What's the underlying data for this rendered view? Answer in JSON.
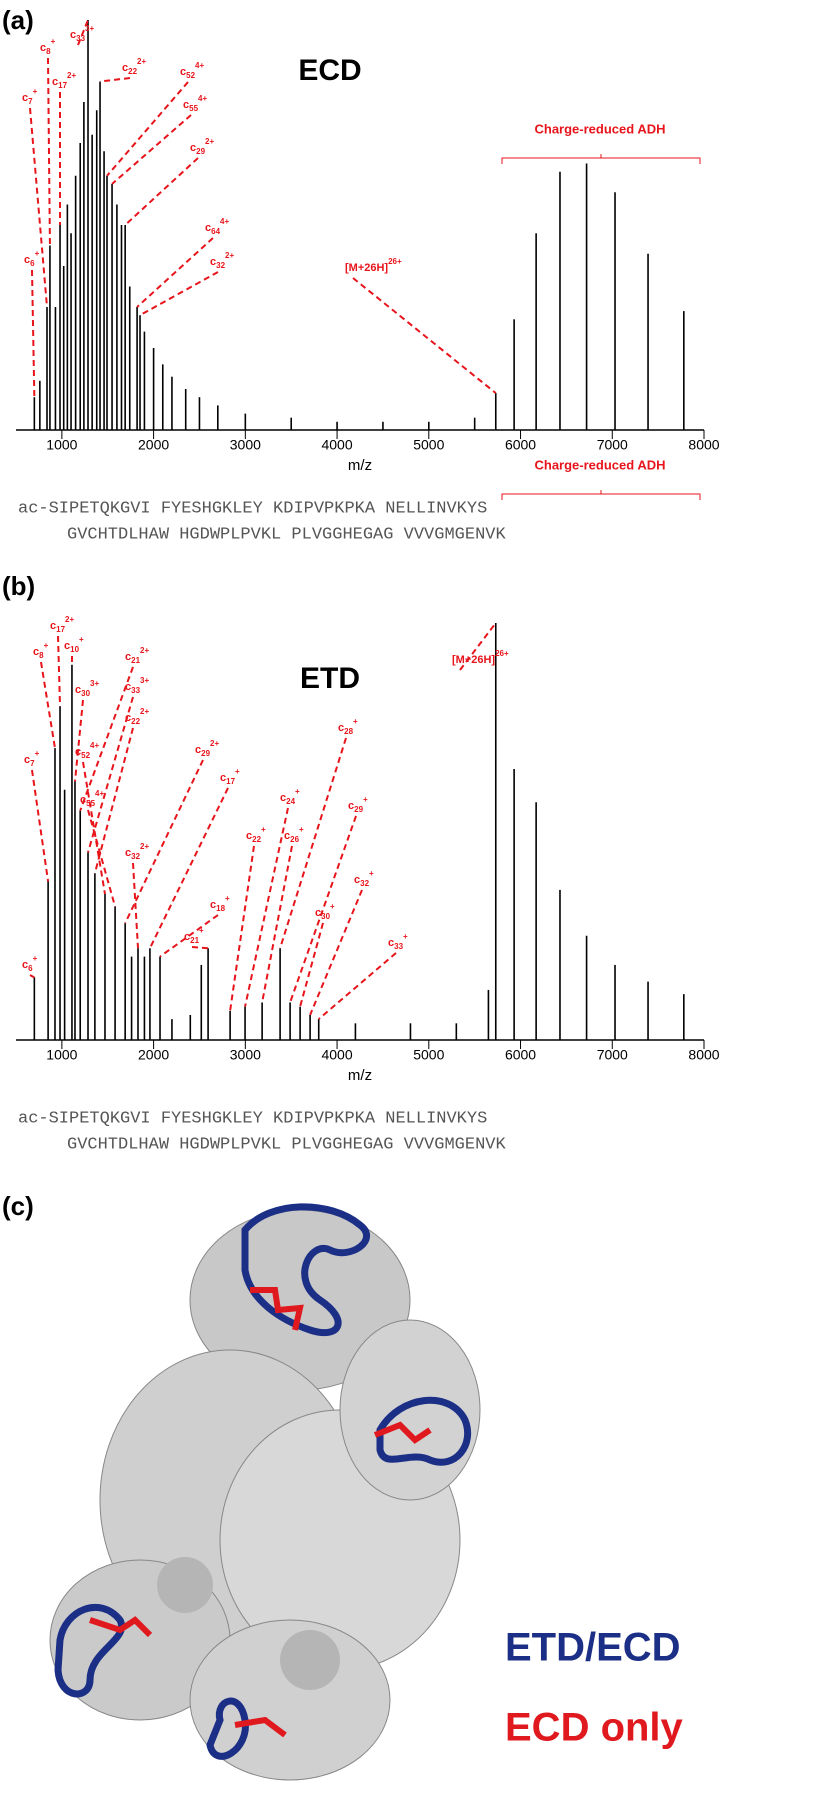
{
  "chart_data": [
    {
      "type": "spectrum",
      "panel_label": "(a)",
      "title": "ECD",
      "xlabel": "m/z",
      "bracket_label": "Charge-reduced ADH",
      "color": "#000000",
      "xlim": [
        500,
        8000
      ],
      "ylim": [
        0,
        100
      ],
      "xticks": [
        1000,
        2000,
        3000,
        4000,
        5000,
        6000,
        7000,
        8000
      ],
      "x": [
        700,
        760,
        838,
        870,
        930,
        980,
        1020,
        1060,
        1100,
        1150,
        1200,
        1240,
        1285,
        1330,
        1380,
        1416,
        1460,
        1492,
        1547,
        1600,
        1650,
        1690,
        1740,
        1820,
        1852,
        1900,
        2000,
        2100,
        2200,
        2350,
        2500,
        2700,
        3000,
        3500,
        4000,
        4500,
        5000,
        5500,
        5730,
        5930,
        6170,
        6430,
        6720,
        7030,
        7390,
        7780
      ],
      "values": [
        8,
        12,
        30,
        45,
        30,
        50,
        40,
        55,
        48,
        62,
        70,
        80,
        100,
        72,
        78,
        85,
        68,
        62,
        60,
        55,
        50,
        50,
        35,
        30,
        28,
        24,
        20,
        16,
        13,
        10,
        8,
        6,
        4,
        3,
        2,
        2,
        2,
        3,
        9,
        27,
        48,
        63,
        65,
        58,
        43,
        29
      ],
      "annotation_color": "#e8141b",
      "annotations": [
        {
          "label": "c",
          "sub": "7",
          "sup": "+",
          "x": 838
        },
        {
          "label": "c",
          "sub": "8",
          "sup": "+",
          "x": 870
        },
        {
          "label": "c",
          "sub": "17",
          "sup": "2+",
          "x": 980
        },
        {
          "label": "c",
          "sub": "33",
          "sup": "3+",
          "x": 1285
        },
        {
          "label": "c",
          "sub": "22",
          "sup": "2+",
          "x": 1416
        },
        {
          "label": "c",
          "sub": "52",
          "sup": "4+",
          "x": 1492
        },
        {
          "label": "c",
          "sub": "55",
          "sup": "4+",
          "x": 1547
        },
        {
          "label": "c",
          "sub": "29",
          "sup": "2+",
          "x": 1690
        },
        {
          "label": "c",
          "sub": "64",
          "sup": "4+",
          "x": 1820
        },
        {
          "label": "c",
          "sub": "32",
          "sup": "2+",
          "x": 1852
        },
        {
          "label": "c",
          "sub": "6",
          "sup": "+",
          "x": 700
        },
        {
          "label": "[M+26H]",
          "sup": "26+",
          "x": 5730
        }
      ],
      "sequence": [
        "ac-SIPETQKGVI FYESHGKLEY KDIPVPKPKA NELLINVKYS",
        "GVCHTDLHAW HGDWPLPVKL PLVGGHEGAG VVVGMGENVK"
      ]
    },
    {
      "type": "spectrum",
      "panel_label": "(b)",
      "title": "ETD",
      "xlabel": "m/z",
      "bracket_label": "Charge-reduced ADH",
      "color": "#000000",
      "xlim": [
        500,
        8000
      ],
      "ylim": [
        0,
        100
      ],
      "xticks": [
        1000,
        2000,
        3000,
        4000,
        5000,
        6000,
        7000,
        8000
      ],
      "x": [
        700,
        850,
        925,
        980,
        1030,
        1110,
        1143,
        1200,
        1285,
        1360,
        1470,
        1580,
        1690,
        1760,
        1830,
        1900,
        1960,
        2070,
        2200,
        2400,
        2520,
        2594,
        2834,
        2997,
        3183,
        3379,
        3488,
        3597,
        3706,
        3800,
        4200,
        4800,
        5300,
        5650,
        5730,
        5930,
        6170,
        6430,
        6720,
        7030,
        7390,
        7780
      ],
      "values": [
        15,
        38,
        70,
        80,
        60,
        90,
        62,
        55,
        45,
        40,
        35,
        32,
        28,
        20,
        22,
        20,
        22,
        20,
        5,
        6,
        18,
        22,
        7,
        8,
        9,
        22,
        9,
        8,
        6,
        5,
        4,
        4,
        4,
        12,
        100,
        65,
        57,
        36,
        25,
        18,
        14,
        11
      ],
      "annotation_color": "#e8141b",
      "annotations": [
        {
          "label": "c",
          "sub": "6",
          "sup": "+",
          "x": 700
        },
        {
          "label": "c",
          "sub": "7",
          "sup": "+",
          "x": 850
        },
        {
          "label": "c",
          "sub": "8",
          "sup": "+",
          "x": 925
        },
        {
          "label": "c",
          "sub": "17",
          "sup": "2+",
          "x": 980
        },
        {
          "label": "c",
          "sub": "10",
          "sup": "+",
          "x": 1110
        },
        {
          "label": "c",
          "sub": "30",
          "sup": "3+",
          "x": 1143
        },
        {
          "label": "c",
          "sub": "21",
          "sup": "2+",
          "x": 1200
        },
        {
          "label": "c",
          "sub": "33",
          "sup": "3+",
          "x": 1285
        },
        {
          "label": "c",
          "sub": "22",
          "sup": "2+",
          "x": 1360
        },
        {
          "label": "c",
          "sub": "52",
          "sup": "4+",
          "x": 1470
        },
        {
          "label": "c",
          "sub": "55",
          "sup": "4+",
          "x": 1580
        },
        {
          "label": "c",
          "sub": "29",
          "sup": "2+",
          "x": 1690
        },
        {
          "label": "c",
          "sub": "32",
          "sup": "2+",
          "x": 1830
        },
        {
          "label": "c",
          "sub": "17",
          "sup": "+",
          "x": 1960
        },
        {
          "label": "c",
          "sub": "18",
          "sup": "+",
          "x": 2070
        },
        {
          "label": "c",
          "sub": "21",
          "sup": "+",
          "x": 2594
        },
        {
          "label": "c",
          "sub": "22",
          "sup": "+",
          "x": 2834
        },
        {
          "label": "c",
          "sub": "24",
          "sup": "+",
          "x": 2997
        },
        {
          "label": "c",
          "sub": "26",
          "sup": "+",
          "x": 3183
        },
        {
          "label": "c",
          "sub": "28",
          "sup": "+",
          "x": 3379
        },
        {
          "label": "c",
          "sub": "29",
          "sup": "+",
          "x": 3488
        },
        {
          "label": "c",
          "sub": "30",
          "sup": "+",
          "x": 3597
        },
        {
          "label": "c",
          "sub": "32",
          "sup": "+",
          "x": 3706
        },
        {
          "label": "c",
          "sub": "33",
          "sup": "+",
          "x": 3800
        },
        {
          "label": "[M+26H]",
          "sup": "26+",
          "x": 5730
        }
      ],
      "sequence": [
        "ac-SIPETQKGVI FYESHGKLEY KDIPVPKPKA NELLINVKYS",
        "GVCHTDLHAW HGDWPLPVKL PLVGGHEGAG VVVGMGENVK"
      ]
    }
  ],
  "structure_panel": {
    "panel_label": "(c)",
    "legend": [
      {
        "name": "ETD/ECD",
        "color": "#1c2f86"
      },
      {
        "name": "ECD only",
        "color": "#e0191f"
      }
    ]
  }
}
